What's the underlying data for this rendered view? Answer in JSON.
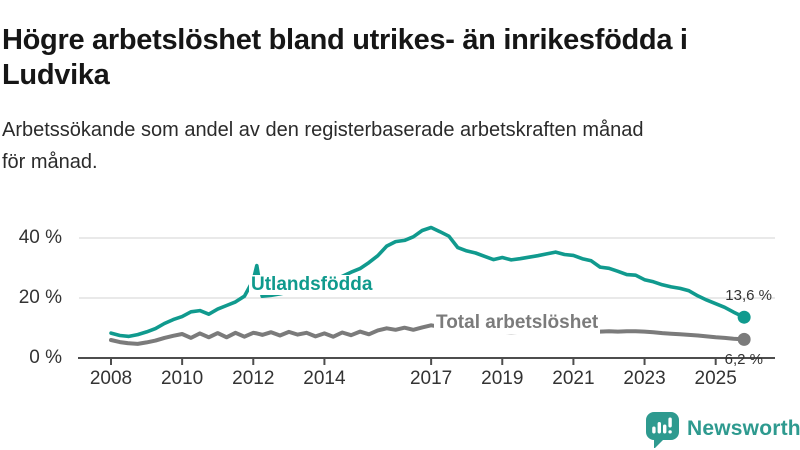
{
  "header": {
    "title_line1": "Högre arbetslöshet bland utrikes- än inrikesfödda i",
    "title_line2": "Ludvika",
    "subtitle_line1": "Arbetssökande som andel av den registerbaserade arbetskraften månad",
    "subtitle_line2": "för månad."
  },
  "chart_data": {
    "type": "line",
    "title": "Högre arbetslöshet bland utrikes- än inrikesfödda i Ludvika",
    "subtitle": "Arbetssökande som andel av den registerbaserade arbetskraften månad för månad.",
    "ylabel": "",
    "xlabel": "",
    "y_unit": "%",
    "ylim": [
      0,
      46
    ],
    "xlim": [
      2007.9,
      2026.6
    ],
    "grid": "horizontal",
    "legend": "inline-labels",
    "grid_color": "#dcdcdc",
    "axis_color": "#4d4d4d",
    "text_color": "#333333",
    "y_ticks": [
      {
        "value": 0,
        "label": "0 %"
      },
      {
        "value": 20,
        "label": "20 %"
      },
      {
        "value": 40,
        "label": "40 %"
      }
    ],
    "x_ticks": [
      {
        "value": 2008,
        "label": "2008"
      },
      {
        "value": 2010,
        "label": "2010"
      },
      {
        "value": 2012,
        "label": "2012"
      },
      {
        "value": 2014,
        "label": "2014"
      },
      {
        "value": 2017,
        "label": "2017"
      },
      {
        "value": 2019,
        "label": "2019"
      },
      {
        "value": 2021,
        "label": "2021"
      },
      {
        "value": 2023,
        "label": "2023"
      },
      {
        "value": 2025,
        "label": "2025"
      }
    ],
    "x": [
      2008,
      2008.25,
      2008.5,
      2008.75,
      2009,
      2009.25,
      2009.5,
      2009.75,
      2010,
      2010.25,
      2010.5,
      2010.75,
      2011,
      2011.25,
      2011.5,
      2011.75,
      2012,
      2012.1,
      2012.2,
      2012.25,
      2012.5,
      2012.75,
      2013,
      2013.25,
      2013.5,
      2013.75,
      2014,
      2014.25,
      2014.5,
      2014.75,
      2015,
      2015.25,
      2015.5,
      2015.75,
      2016,
      2016.25,
      2016.5,
      2016.75,
      2017,
      2017.25,
      2017.5,
      2017.75,
      2018,
      2018.25,
      2018.5,
      2018.75,
      2019,
      2019.25,
      2019.5,
      2019.75,
      2020,
      2020.25,
      2020.5,
      2020.75,
      2021,
      2021.25,
      2021.5,
      2021.75,
      2022,
      2022.25,
      2022.5,
      2022.75,
      2023,
      2023.25,
      2023.5,
      2023.75,
      2024,
      2024.25,
      2024.5,
      2024.75,
      2025,
      2025.25,
      2025.5,
      2025.8
    ],
    "series": [
      {
        "name": "Utlandsfödda",
        "color": "#109a8e",
        "line_width": 3.6,
        "end_label": "13,6 %",
        "end_value": 13.6,
        "values": [
          8.3,
          7.5,
          7.2,
          7.8,
          8.7,
          9.8,
          11.5,
          12.8,
          13.8,
          15.4,
          15.8,
          14.6,
          16.3,
          17.5,
          18.7,
          20.6,
          26.0,
          30.8,
          23.5,
          20.6,
          20.9,
          21.4,
          22.0,
          22.6,
          23.2,
          23.9,
          24.6,
          25.7,
          27.2,
          28.6,
          29.8,
          31.8,
          34.1,
          37.3,
          38.8,
          39.2,
          40.4,
          42.5,
          43.5,
          42.1,
          40.6,
          36.8,
          35.7,
          35.0,
          33.9,
          32.8,
          33.5,
          32.7,
          33.1,
          33.6,
          34.1,
          34.7,
          35.3,
          34.5,
          34.2,
          33.1,
          32.4,
          30.3,
          29.9,
          28.9,
          27.8,
          27.6,
          26.1,
          25.4,
          24.4,
          23.7,
          23.2,
          22.4,
          20.7,
          19.3,
          18.1,
          16.9,
          15.3,
          13.6
        ]
      },
      {
        "name": "Total arbetslöshet",
        "color": "#7b7b7b",
        "line_width": 4,
        "end_label": "6,2 %",
        "end_value": 6.2,
        "values": [
          6.0,
          5.3,
          4.9,
          4.7,
          5.2,
          5.8,
          6.7,
          7.4,
          8.0,
          6.7,
          8.2,
          6.9,
          8.3,
          6.9,
          8.4,
          7.1,
          8.4,
          8.2,
          7.9,
          7.7,
          8.6,
          7.5,
          8.7,
          7.8,
          8.4,
          7.2,
          8.2,
          7.1,
          8.5,
          7.6,
          8.8,
          7.9,
          9.2,
          9.9,
          9.4,
          10.1,
          9.4,
          10.2,
          10.9,
          10.4,
          10.0,
          9.7,
          9.4,
          9.1,
          8.9,
          8.8,
          8.7,
          8.6,
          8.7,
          8.9,
          9.1,
          9.7,
          10.0,
          9.6,
          9.3,
          9.1,
          8.9,
          8.8,
          8.9,
          8.8,
          8.9,
          8.9,
          8.8,
          8.6,
          8.3,
          8.1,
          7.9,
          7.7,
          7.5,
          7.2,
          6.9,
          6.7,
          6.4,
          6.2
        ]
      }
    ]
  },
  "footer": {
    "brand": "Newsworthy"
  }
}
